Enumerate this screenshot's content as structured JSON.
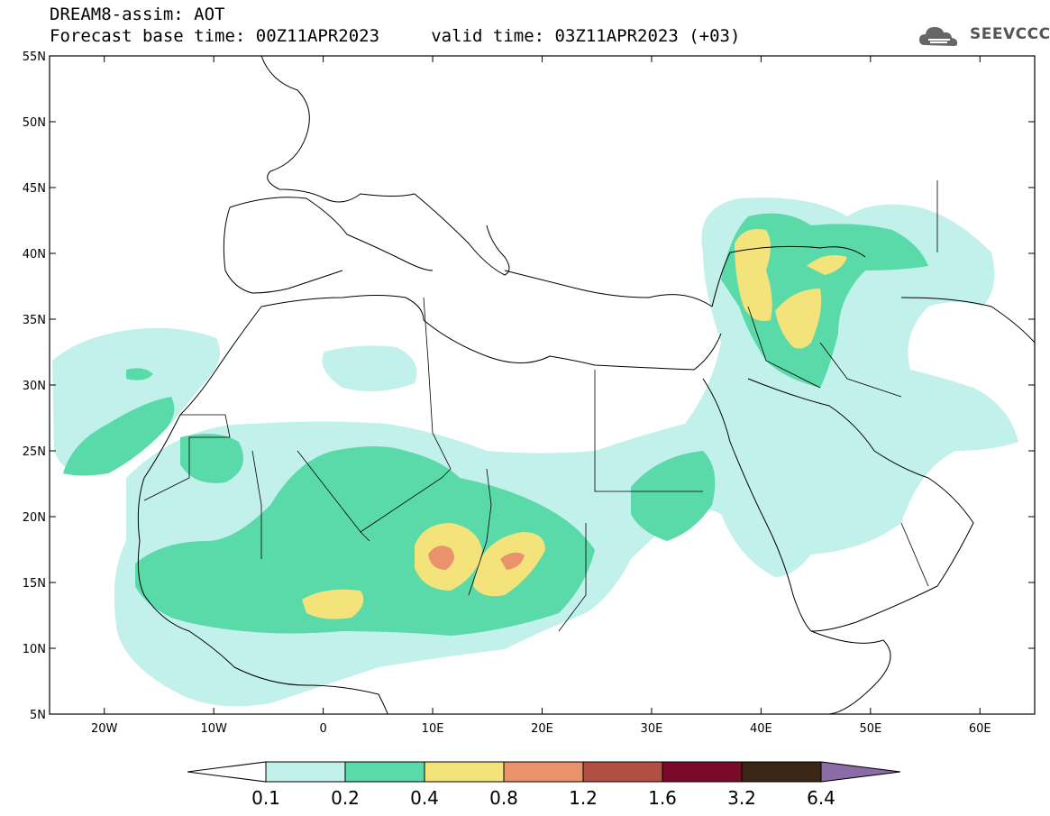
{
  "title": {
    "line1": "DREAM8-assim: AOT",
    "line2": "Forecast base time: 00Z11APR2023     valid time: 03Z11APR2023 (+03)"
  },
  "logo": {
    "text": "SEEVCCC",
    "icon": "cloud-logo-icon"
  },
  "axes": {
    "lat_labels": [
      "55N",
      "50N",
      "45N",
      "40N",
      "35N",
      "30N",
      "25N",
      "20N",
      "15N",
      "10N",
      "5N"
    ],
    "lat_values": [
      55,
      50,
      45,
      40,
      35,
      30,
      25,
      20,
      15,
      10,
      5
    ],
    "lon_labels": [
      "20W",
      "10W",
      "0",
      "10E",
      "20E",
      "30E",
      "40E",
      "50E",
      "60E"
    ],
    "lon_values": [
      -20,
      -10,
      0,
      10,
      20,
      30,
      40,
      50,
      60
    ],
    "lon_range": [
      -25,
      65
    ],
    "lat_range": [
      5,
      55
    ]
  },
  "colorbar": {
    "labels": [
      "0.1",
      "0.2",
      "0.4",
      "0.8",
      "1.2",
      "1.6",
      "3.2",
      "6.4"
    ],
    "colors": [
      "#ffffff",
      "#c2f0ea",
      "#5ad9a9",
      "#f4e27a",
      "#e9926b",
      "#b24e43",
      "#7b0a2a",
      "#3c2616",
      "#8b6ba8"
    ]
  },
  "field_colors": {
    "level1": "#c2f0ea",
    "level2": "#5ad9a9",
    "level3": "#f4e27a",
    "level4": "#e9926b"
  }
}
